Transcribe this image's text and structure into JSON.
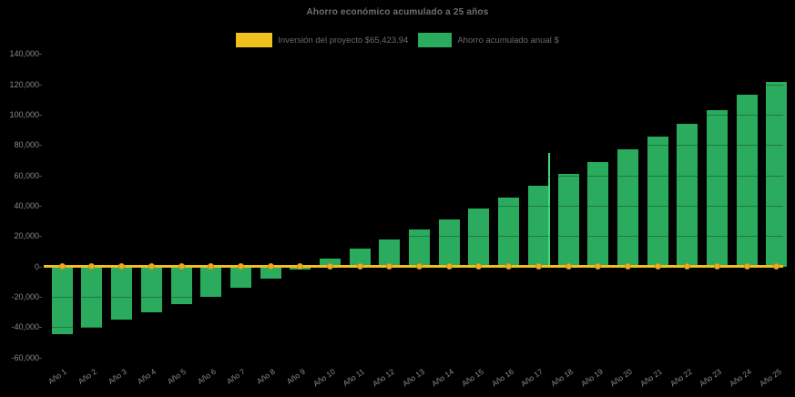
{
  "title": "Ahorro económico acumulado a 25 años",
  "colors": {
    "background": "#000000",
    "bar_green": "#2bab5e",
    "line_yellow": "#f0c11d",
    "marker_yellow": "#e8ae25",
    "marker_edge": "#c99218",
    "cursor_artifact_green": "#3edd78",
    "title_text": "#6f6f6f",
    "legend_text": "#6a6a6a",
    "axis_text": "#8a8a8a"
  },
  "legend": {
    "inversion_label": "Inversión del proyecto $65,423.94",
    "ahorro_label": "Ahorro acumulado anual $"
  },
  "chart_data": {
    "type": "bar",
    "title": "Ahorro económico acumulado a 25 años",
    "xlabel": "",
    "ylabel": "",
    "ylim": [
      -60000,
      140000
    ],
    "ytick_step": 20000,
    "ytick_labels": [
      "140,000",
      "120,000",
      "100,000",
      "80,000",
      "60,000",
      "40,000",
      "20,000",
      "0",
      "-20,000",
      "-40,000",
      "-60,000"
    ],
    "grid": "faint-dark-over-bars",
    "legend_position": "top-center",
    "categories": [
      "Año 1",
      "Año 2",
      "Año 3",
      "Año 4",
      "Año 5",
      "Año 6",
      "Año 7",
      "Año 8",
      "Año 9",
      "Año 10",
      "Año 11",
      "Año 12",
      "Año 13",
      "Año 14",
      "Año 15",
      "Año 16",
      "Año 17",
      "Año 18",
      "Año 19",
      "Año 20",
      "Año 21",
      "Año 22",
      "Año 23",
      "Año 24",
      "Año 25"
    ],
    "series": [
      {
        "name": "Inversión del proyecto $65,423.94",
        "type": "line",
        "color": "#f0c11d",
        "marker": "circle",
        "constant_value": 0
      },
      {
        "name": "Ahorro acumulado anual $",
        "type": "bar",
        "color": "#2bab5e",
        "values": [
          -44500,
          -40200,
          -34700,
          -29900,
          -25000,
          -19700,
          -14000,
          -7800,
          -2000,
          5000,
          11800,
          18000,
          24300,
          31000,
          38000,
          45200,
          53400,
          61100,
          68500,
          77400,
          85500,
          94200,
          102700,
          113000,
          121300
        ]
      }
    ]
  }
}
